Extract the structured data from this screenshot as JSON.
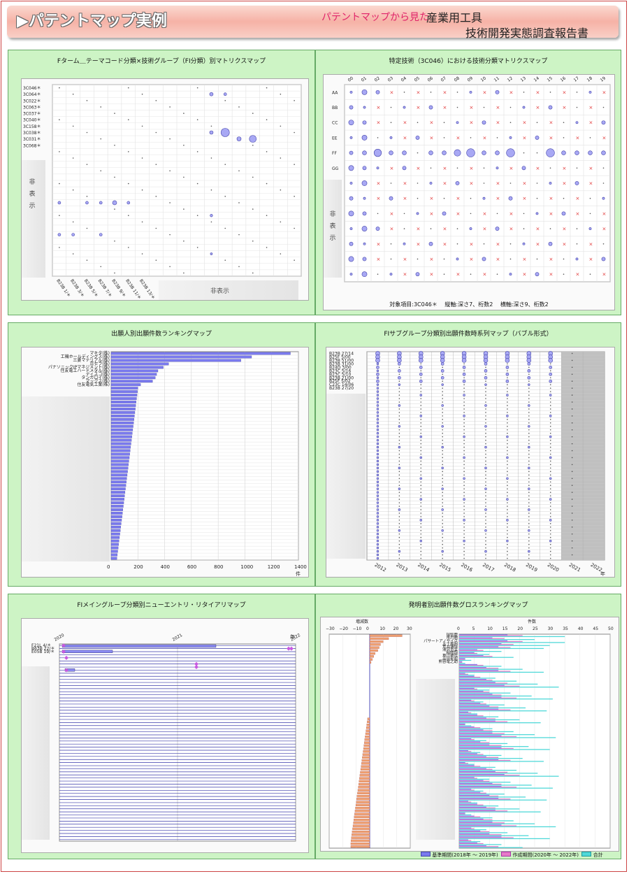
{
  "header": {
    "title": "▶パテントマップ実例",
    "subtitle_prefix": "パテントマップから見た",
    "report_line1": "産業用工具",
    "report_line2": "技術開発実態調査報告書"
  },
  "colors": {
    "panel_bg": "#cdf4c5",
    "bubble": "#9b9bf0",
    "cross": "#e03030",
    "bar_blue": "#7a7aee",
    "bar_orange": "#f0a070",
    "bar_pink": "#e67ac8",
    "bar_cyan": "#4ed8d8",
    "accent": "#e0246a"
  },
  "panel1": {
    "title": "Fターム＿テーマコード分類×技術グループ（FI分類）別マトリクスマップ",
    "hidden_label": "非表示",
    "hidden_vertical": "非表示",
    "chart_data": {
      "type": "scatter",
      "y_labels": [
        "3C046＊",
        "3C064＊",
        "3C022＊",
        "3C063＊",
        "3C037＊",
        "3C040＊",
        "3C158＊",
        "3C038＊",
        "3C031＊",
        "3C068＊"
      ],
      "x_labels": [
        "B23B 1/＊",
        "B23B 3/＊",
        "B23B 5/＊",
        "B23B 7/＊",
        "B23B 9/＊",
        "B23B 11/＊",
        "B23B 13/＊"
      ]
    }
  },
  "panel2": {
    "title": "特定技術（3C046）における技術分類マトリクスマップ",
    "hidden_vertical": "非表示",
    "footer": "対象項目:3C046＊　 縦軸:深さ7、桁数2　 横軸:深さ9、桁数2",
    "chart_data": {
      "type": "scatter",
      "x_labels": [
        "00",
        "01",
        "02",
        "03",
        "04",
        "05",
        "06",
        "07",
        "08",
        "09",
        "10",
        "11",
        "12",
        "13",
        "14",
        "15",
        "16",
        "17",
        "18",
        "19"
      ],
      "y_labels": [
        "AA",
        "BB",
        "CC",
        "EE",
        "FF",
        "GG"
      ]
    }
  },
  "panel3": {
    "title": "出願人別出願件数ランキングマップ",
    "unit": "件",
    "chart_data": {
      "type": "bar",
      "categories": [
        "マキタ(株)",
        "工機ホールディングス(株)",
        "三菱マテリアル(株)",
        "京セラ(株)",
        "パナソニックIPマネジメント(株)",
        "住友電工ハードメタル(株)",
        "ディスコ(株)",
        "タンガロイ(株)",
        "マックス(株)",
        "住友電気工業(株)"
      ],
      "values": [
        1340,
        1050,
        970,
        430,
        390,
        350,
        340,
        330,
        310,
        220
      ],
      "xlim": [
        0,
        1400
      ],
      "xticks": [
        "0",
        "200",
        "400",
        "600",
        "800",
        "1000",
        "1200",
        "1400"
      ]
    }
  },
  "panel4": {
    "title": "FIサブグループ分類別出願件数時系列マップ（バブル形式）",
    "unit": "年",
    "chart_data": {
      "type": "scatter",
      "y_labels": [
        "B23B 27/14",
        "B25F 5/00",
        "B23B 51/00",
        "B23B 31/00",
        "B24D 3/00",
        "B23C 5/16",
        "B23C 5/10",
        "B23B 21/00",
        "B25F 5/02",
        "C23C 14/06",
        "B23B 27/20"
      ],
      "x_labels": [
        "2012",
        "2013",
        "2014",
        "2015",
        "2016",
        "2017",
        "2018",
        "2019",
        "2020",
        "2021",
        "2022"
      ]
    }
  },
  "panel5": {
    "title": "FIメイングループ分類別ニューエントリ・リタイアリマップ",
    "unit": "年",
    "chart_data": {
      "type": "bar",
      "y_labels": [
        "F21L 4/＊",
        "B63B 22/＊",
        "E05B 19/＊"
      ],
      "x_labels": [
        "2020",
        "2021",
        "2022"
      ]
    }
  },
  "panel6": {
    "title": "発明者別出願件数グロスランキングマップ",
    "left_label": "増減数",
    "right_label": "件数",
    "legend": {
      "base": "基準期間(2018年 ～ 2019年)",
      "target": "作成期間(2020年 ～ 2022年)",
      "total": "合計"
    },
    "chart_data": {
      "type": "bar",
      "categories": [
        "瑞智慶",
        "市川剛",
        "パサートアノサイク",
        "五十嵐圀",
        "荒井博恒",
        "清沢直幸",
        "稲岡翔",
        "草川卓也",
        "高田星昭",
        "熊谷竜之助"
      ],
      "left_xticks": [
        "−30",
        "−20",
        "−10",
        "0",
        "10",
        "20",
        "30"
      ],
      "right_xticks": [
        "0",
        "5",
        "10",
        "15",
        "20",
        "25",
        "30",
        "35",
        "40",
        "45",
        "50"
      ]
    }
  }
}
